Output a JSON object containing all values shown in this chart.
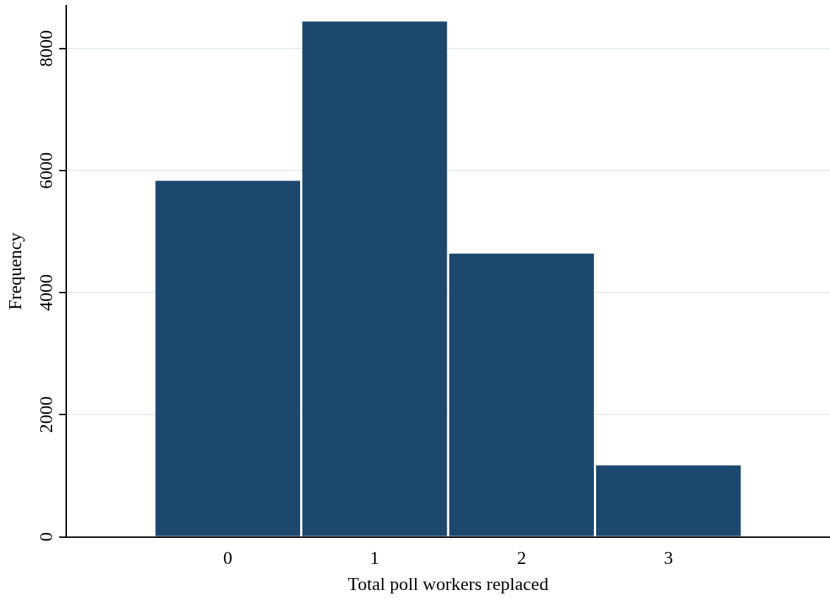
{
  "chart_data": {
    "type": "histogram",
    "xlabel": "Total poll workers replaced",
    "ylabel": "Frequency",
    "bins": [
      -0.5,
      0.5,
      1.5,
      2.5,
      3.5
    ],
    "values": [
      5830,
      8440,
      4640,
      1170
    ],
    "color": "#1c4870",
    "xlim": [
      -1.1,
      4.1
    ],
    "xticks": [
      0,
      1,
      2,
      3
    ],
    "ylim": [
      0,
      8700
    ],
    "yticks": [
      0,
      2000,
      4000,
      6000,
      8000
    ],
    "grid": "y",
    "legend": false
  }
}
